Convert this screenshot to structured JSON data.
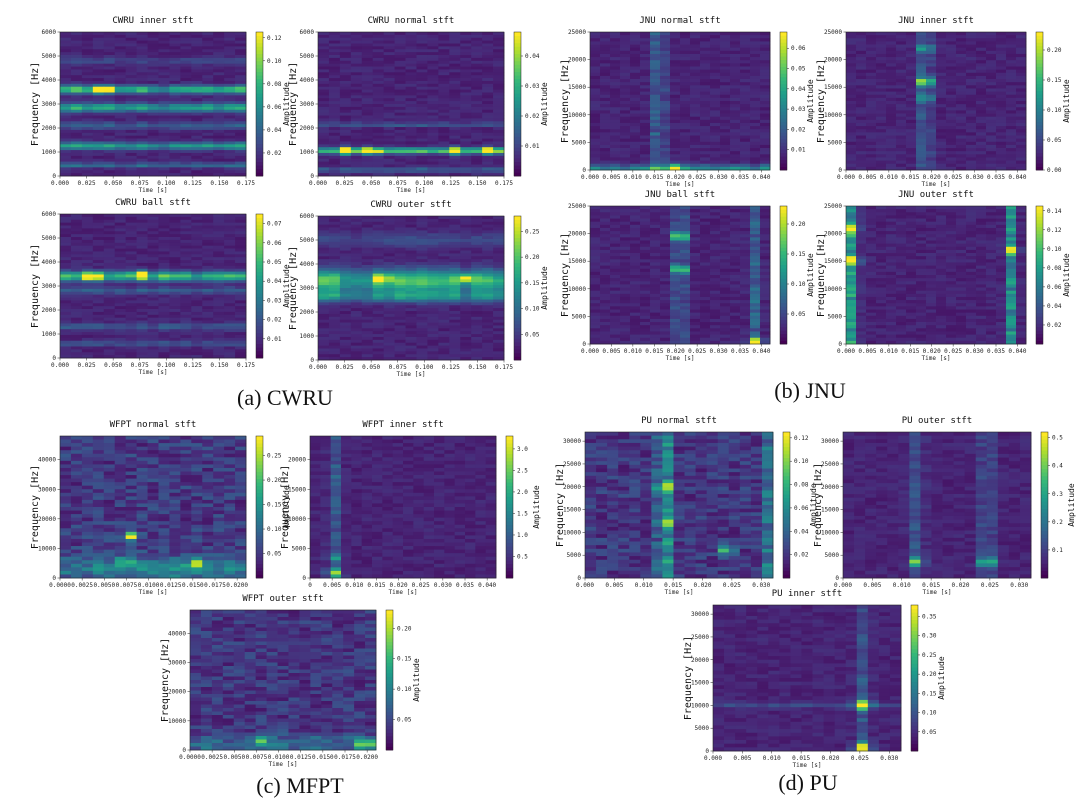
{
  "chart_data": [
    {
      "type": "heatmap",
      "id": "cwru-inner",
      "title": "CWRU inner stft",
      "xlabel": "Time [s]",
      "ylabel": "Frequency [Hz]",
      "colorbar_label": "Amplitude",
      "xticks": [
        "0.000",
        "0.025",
        "0.050",
        "0.075",
        "0.100",
        "0.125",
        "0.150",
        "0.175"
      ],
      "xlim": [
        0,
        0.175
      ],
      "yticks": [
        "0",
        "1000",
        "2000",
        "3000",
        "4000",
        "5000",
        "6000"
      ],
      "ylim": [
        0,
        6000
      ],
      "cbar_ticks": [
        "0.02",
        "0.04",
        "0.06",
        "0.08",
        "0.10",
        "0.12"
      ],
      "cbar_range": [
        0.0,
        0.125
      ],
      "ncols": 17,
      "nrows": 50,
      "bands": [
        {
          "y": 3600,
          "w": 160,
          "a": 0.55
        },
        {
          "y": 2850,
          "w": 180,
          "a": 0.45
        },
        {
          "y": 1250,
          "w": 150,
          "a": 0.42
        },
        {
          "y": 450,
          "w": 100,
          "a": 0.25
        },
        {
          "y": 2100,
          "w": 150,
          "a": 0.18
        },
        {
          "y": 4800,
          "w": 150,
          "a": 0.1
        }
      ],
      "hotspots": [
        {
          "t": 0.04,
          "y": 3600,
          "a": 0.9
        }
      ]
    },
    {
      "type": "heatmap",
      "id": "cwru-normal",
      "title": "CWRU normal stft",
      "xlabel": "Time [s]",
      "ylabel": "Frequency [Hz]",
      "colorbar_label": "Amplitude",
      "xticks": [
        "0.000",
        "0.025",
        "0.050",
        "0.075",
        "0.100",
        "0.125",
        "0.150",
        "0.175"
      ],
      "xlim": [
        0,
        0.175
      ],
      "yticks": [
        "0",
        "1000",
        "2000",
        "3000",
        "4000",
        "5000",
        "6000"
      ],
      "ylim": [
        0,
        6000
      ],
      "cbar_ticks": [
        "0.01",
        "0.02",
        "0.03",
        "0.04"
      ],
      "cbar_range": [
        0.0,
        0.048
      ],
      "ncols": 17,
      "nrows": 50,
      "bands": [
        {
          "y": 1050,
          "w": 120,
          "a": 0.55
        },
        {
          "y": 2150,
          "w": 60,
          "a": 0.28
        },
        {
          "y": 250,
          "w": 100,
          "a": 0.2
        }
      ],
      "hotspots": [
        {
          "t": 0.025,
          "y": 1050,
          "a": 0.85
        },
        {
          "t": 0.05,
          "y": 1050,
          "a": 0.8
        },
        {
          "t": 0.13,
          "y": 1050,
          "a": 0.85
        },
        {
          "t": 0.16,
          "y": 1050,
          "a": 0.8
        }
      ]
    },
    {
      "type": "heatmap",
      "id": "cwru-ball",
      "title": "CWRU ball stft",
      "xlabel": "Time [s]",
      "ylabel": "Frequency [Hz]",
      "colorbar_label": "Amplitude",
      "xticks": [
        "0.000",
        "0.025",
        "0.050",
        "0.075",
        "0.100",
        "0.125",
        "0.150",
        "0.175"
      ],
      "xlim": [
        0,
        0.175
      ],
      "yticks": [
        "0",
        "1000",
        "2000",
        "3000",
        "4000",
        "5000",
        "6000"
      ],
      "ylim": [
        0,
        6000
      ],
      "cbar_ticks": [
        "0.01",
        "0.02",
        "0.03",
        "0.04",
        "0.05",
        "0.06",
        "0.07"
      ],
      "cbar_range": [
        0.0,
        0.075
      ],
      "ncols": 17,
      "nrows": 50,
      "bands": [
        {
          "y": 3400,
          "w": 200,
          "a": 0.55
        },
        {
          "y": 2800,
          "w": 150,
          "a": 0.18
        },
        {
          "y": 1300,
          "w": 150,
          "a": 0.16
        },
        {
          "y": 600,
          "w": 120,
          "a": 0.14
        }
      ],
      "hotspots": [
        {
          "t": 0.03,
          "y": 3400,
          "a": 0.8
        },
        {
          "t": 0.075,
          "y": 3450,
          "a": 0.85
        }
      ]
    },
    {
      "type": "heatmap",
      "id": "cwru-outer",
      "title": "CWRU outer stft",
      "xlabel": "Time [s]",
      "ylabel": "Frequency [Hz]",
      "colorbar_label": "Amplitude",
      "xticks": [
        "0.000",
        "0.025",
        "0.050",
        "0.075",
        "0.100",
        "0.125",
        "0.150",
        "0.175"
      ],
      "xlim": [
        0,
        0.175
      ],
      "yticks": [
        "0",
        "1000",
        "2000",
        "3000",
        "4000",
        "5000",
        "6000"
      ],
      "ylim": [
        0,
        6000
      ],
      "cbar_ticks": [
        "0.05",
        "0.10",
        "0.15",
        "0.20",
        "0.25"
      ],
      "cbar_range": [
        0.0,
        0.28
      ],
      "ncols": 17,
      "nrows": 50,
      "bands": [
        {
          "y": 3300,
          "w": 450,
          "a": 0.55
        },
        {
          "y": 2650,
          "w": 250,
          "a": 0.35
        },
        {
          "y": 5000,
          "w": 300,
          "a": 0.12
        }
      ],
      "hotspots": [
        {
          "t": 0.06,
          "y": 3400,
          "a": 0.65
        },
        {
          "t": 0.14,
          "y": 3400,
          "a": 0.6
        }
      ]
    },
    {
      "type": "heatmap",
      "id": "jnu-normal",
      "title": "JNU normal stft",
      "xlabel": "Time [s]",
      "ylabel": "Frequency [Hz]",
      "colorbar_label": "Amplitude",
      "xticks": [
        "0.000",
        "0.005",
        "0.010",
        "0.015",
        "0.020",
        "0.025",
        "0.030",
        "0.035",
        "0.040"
      ],
      "xlim": [
        0,
        0.042
      ],
      "yticks": [
        "0",
        "5000",
        "10000",
        "15000",
        "20000",
        "25000"
      ],
      "ylim": [
        0,
        25000
      ],
      "cbar_ticks": [
        "0.01",
        "0.02",
        "0.03",
        "0.04",
        "0.05",
        "0.06"
      ],
      "cbar_range": [
        0.0,
        0.068
      ],
      "ncols": 18,
      "nrows": 44,
      "bands": [
        {
          "y": 400,
          "w": 500,
          "a": 0.35
        }
      ],
      "cols": [
        {
          "t": 0.016,
          "w": 0.0015,
          "a": 0.25
        }
      ],
      "hotspots": [
        {
          "t": 0.02,
          "y": 400,
          "a": 0.6
        }
      ]
    },
    {
      "type": "heatmap",
      "id": "jnu-inner",
      "title": "JNU inner stft",
      "xlabel": "Time [s]",
      "ylabel": "Frequency [Hz]",
      "colorbar_label": "Amplitude",
      "xticks": [
        "0.000",
        "0.005",
        "0.010",
        "0.015",
        "0.020",
        "0.025",
        "0.030",
        "0.035",
        "0.040"
      ],
      "xlim": [
        0,
        0.042
      ],
      "yticks": [
        "0",
        "5000",
        "10000",
        "15000",
        "20000",
        "25000"
      ],
      "ylim": [
        0,
        25000
      ],
      "cbar_ticks": [
        "0.00",
        "0.05",
        "0.10",
        "0.15",
        "0.20"
      ],
      "cbar_range": [
        0.0,
        0.23
      ],
      "ncols": 18,
      "nrows": 44,
      "bands": [],
      "cols": [
        {
          "t": 0.0185,
          "w": 0.0012,
          "a": 0.3
        }
      ],
      "hotspots": [
        {
          "t": 0.0185,
          "y": 16000,
          "a": 0.95
        },
        {
          "t": 0.0185,
          "y": 13000,
          "a": 0.45
        },
        {
          "t": 0.0185,
          "y": 22000,
          "a": 0.4
        }
      ]
    },
    {
      "type": "heatmap",
      "id": "jnu-ball",
      "title": "JNU ball stft",
      "xlabel": "Time [s]",
      "ylabel": "Frequency [Hz]",
      "colorbar_label": "Amplitude",
      "xticks": [
        "0.000",
        "0.005",
        "0.010",
        "0.015",
        "0.020",
        "0.025",
        "0.030",
        "0.035",
        "0.040"
      ],
      "xlim": [
        0,
        0.042
      ],
      "yticks": [
        "0",
        "5000",
        "10000",
        "15000",
        "20000",
        "25000"
      ],
      "ylim": [
        0,
        25000
      ],
      "cbar_ticks": [
        "0.05",
        "0.10",
        "0.15",
        "0.20"
      ],
      "cbar_range": [
        0.0,
        0.23
      ],
      "ncols": 18,
      "nrows": 44,
      "bands": [],
      "cols": [
        {
          "t": 0.021,
          "w": 0.0012,
          "a": 0.3
        },
        {
          "t": 0.0385,
          "w": 0.0012,
          "a": 0.2
        }
      ],
      "hotspots": [
        {
          "t": 0.021,
          "y": 19500,
          "a": 0.85
        },
        {
          "t": 0.021,
          "y": 13500,
          "a": 0.75
        },
        {
          "t": 0.0385,
          "y": 500,
          "a": 0.75
        }
      ]
    },
    {
      "type": "heatmap",
      "id": "jnu-outer",
      "title": "JNU outer stft",
      "xlabel": "Time [s]",
      "ylabel": "Frequency [Hz]",
      "colorbar_label": "Amplitude",
      "xticks": [
        "0.000",
        "0.005",
        "0.010",
        "0.015",
        "0.020",
        "0.025",
        "0.030",
        "0.035",
        "0.040"
      ],
      "xlim": [
        0,
        0.042
      ],
      "yticks": [
        "0",
        "5000",
        "10000",
        "15000",
        "20000",
        "25000"
      ],
      "ylim": [
        0,
        25000
      ],
      "cbar_ticks": [
        "0.02",
        "0.04",
        "0.06",
        "0.08",
        "0.10",
        "0.12",
        "0.14"
      ],
      "cbar_range": [
        0.0,
        0.145
      ],
      "ncols": 18,
      "nrows": 44,
      "bands": [],
      "cols": [
        {
          "t": 0.0015,
          "w": 0.0012,
          "a": 0.45
        },
        {
          "t": 0.0385,
          "w": 0.0012,
          "a": 0.35
        }
      ],
      "hotspots": [
        {
          "t": 0.0015,
          "y": 15000,
          "a": 0.75
        },
        {
          "t": 0.0015,
          "y": 21000,
          "a": 0.65
        },
        {
          "t": 0.0385,
          "y": 17000,
          "a": 0.5
        }
      ]
    },
    {
      "type": "heatmap",
      "id": "wfpt-normal",
      "title": "WFPT normal stft",
      "xlabel": "Time [s]",
      "ylabel": "Frequency [Hz]",
      "colorbar_label": "Amplitude",
      "xticks": [
        "0.0000",
        "0.0025",
        "0.0050",
        "0.0075",
        "0.0100",
        "0.0125",
        "0.0150",
        "0.0175",
        "0.0200"
      ],
      "xlim": [
        0,
        0.021
      ],
      "yticks": [
        "0",
        "10000",
        "20000",
        "30000",
        "40000"
      ],
      "ylim": [
        0,
        48000
      ],
      "cbar_ticks": [
        "0.05",
        "0.10",
        "0.15",
        "0.20",
        "0.25"
      ],
      "cbar_range": [
        0.0,
        0.29
      ],
      "ncols": 17,
      "nrows": 40,
      "noise": 0.22,
      "bands": [
        {
          "y": 3000,
          "w": 4000,
          "a": 0.25
        }
      ],
      "hotspots": [
        {
          "t": 0.0078,
          "y": 14000,
          "a": 0.8
        },
        {
          "t": 0.0155,
          "y": 5000,
          "a": 0.7
        },
        {
          "t": 0.0075,
          "y": 5500,
          "a": 0.55
        }
      ]
    },
    {
      "type": "heatmap",
      "id": "wfpt-inner",
      "title": "WFPT inner stft",
      "xlabel": "Time [s]",
      "ylabel": "Frequency [Hz]",
      "colorbar_label": "Amplitude",
      "xticks": [
        "0",
        "0.005",
        "0.010",
        "0.015",
        "0.020",
        "0.025",
        "0.030",
        "0.035",
        "0.040"
      ],
      "xlim": [
        0,
        0.042
      ],
      "yticks": [
        "0",
        "5000",
        "10000",
        "15000",
        "20000"
      ],
      "ylim": [
        0,
        24000
      ],
      "cbar_ticks": [
        "0.5",
        "1.0",
        "1.5",
        "2.0",
        "2.5",
        "3.0"
      ],
      "cbar_range": [
        0.0,
        3.3
      ],
      "ncols": 18,
      "nrows": 40,
      "bands": [],
      "cols": [
        {
          "t": 0.0055,
          "w": 0.0012,
          "a": 0.18
        }
      ],
      "hotspots": [
        {
          "t": 0.0055,
          "y": 800,
          "a": 0.65
        },
        {
          "t": 0.0055,
          "y": 3500,
          "a": 0.3
        }
      ]
    },
    {
      "type": "heatmap",
      "id": "wfpt-outer",
      "title": "WFPT outer stft",
      "xlabel": "Time [s]",
      "ylabel": "Frequency [Hz]",
      "colorbar_label": "Amplitude",
      "xticks": [
        "0.0000",
        "0.0025",
        "0.0050",
        "0.0075",
        "0.0100",
        "0.0125",
        "0.0150",
        "0.0175",
        "0.0200"
      ],
      "xlim": [
        0,
        0.021
      ],
      "yticks": [
        "0",
        "10000",
        "20000",
        "30000",
        "40000"
      ],
      "ylim": [
        0,
        48000
      ],
      "cbar_ticks": [
        "0.05",
        "0.10",
        "0.15",
        "0.20"
      ],
      "cbar_range": [
        0.0,
        0.23
      ],
      "ncols": 17,
      "nrows": 40,
      "noise": 0.2,
      "bands": [
        {
          "y": 2000,
          "w": 3000,
          "a": 0.2
        }
      ],
      "hotspots": [
        {
          "t": 0.0198,
          "y": 2000,
          "a": 0.85
        },
        {
          "t": 0.008,
          "y": 3000,
          "a": 0.45
        }
      ]
    },
    {
      "type": "heatmap",
      "id": "pu-normal",
      "title": "PU normal stft",
      "xlabel": "Time [s]",
      "ylabel": "Frequency [Hz]",
      "colorbar_label": "Amplitude",
      "xticks": [
        "0.000",
        "0.005",
        "0.010",
        "0.015",
        "0.020",
        "0.025",
        "0.030"
      ],
      "xlim": [
        0,
        0.032
      ],
      "yticks": [
        "0",
        "5000",
        "10000",
        "15000",
        "20000",
        "25000",
        "30000"
      ],
      "ylim": [
        0,
        32000
      ],
      "cbar_ticks": [
        "0.02",
        "0.04",
        "0.06",
        "0.08",
        "0.10",
        "0.12"
      ],
      "cbar_range": [
        0.0,
        0.125
      ],
      "ncols": 17,
      "nrows": 40,
      "noise": 0.2,
      "bands": [],
      "cols": [
        {
          "t": 0.0135,
          "w": 0.0012,
          "a": 0.4
        },
        {
          "t": 0.031,
          "w": 0.001,
          "a": 0.2
        }
      ],
      "hotspots": [
        {
          "t": 0.0135,
          "y": 20000,
          "a": 0.6
        },
        {
          "t": 0.0135,
          "y": 12000,
          "a": 0.55
        },
        {
          "t": 0.024,
          "y": 6000,
          "a": 0.5
        }
      ]
    },
    {
      "type": "heatmap",
      "id": "pu-outer",
      "title": "PU outer stft",
      "xlabel": "Time [s]",
      "ylabel": "Frequency [Hz]",
      "colorbar_label": "Amplitude",
      "xticks": [
        "0.000",
        "0.005",
        "0.010",
        "0.015",
        "0.020",
        "0.025",
        "0.030"
      ],
      "xlim": [
        0,
        0.032
      ],
      "yticks": [
        "0",
        "5000",
        "10000",
        "15000",
        "20000",
        "25000",
        "30000"
      ],
      "ylim": [
        0,
        32000
      ],
      "cbar_ticks": [
        "0.1",
        "0.2",
        "0.3",
        "0.4",
        "0.5"
      ],
      "cbar_range": [
        0.0,
        0.52
      ],
      "ncols": 17,
      "nrows": 40,
      "bands": [],
      "cols": [
        {
          "t": 0.0125,
          "w": 0.0012,
          "a": 0.15
        },
        {
          "t": 0.0245,
          "w": 0.0012,
          "a": 0.18
        }
      ],
      "hotspots": [
        {
          "t": 0.0125,
          "y": 3500,
          "a": 0.6
        },
        {
          "t": 0.0245,
          "y": 3500,
          "a": 0.7
        }
      ]
    },
    {
      "type": "heatmap",
      "id": "pu-inner",
      "title": "PU inner stft",
      "xlabel": "Time [s]",
      "ylabel": "Frequency [Hz]",
      "colorbar_label": "Amplitude",
      "xticks": [
        "0.000",
        "0.005",
        "0.010",
        "0.015",
        "0.020",
        "0.025",
        "0.030"
      ],
      "xlim": [
        0,
        0.032
      ],
      "yticks": [
        "0",
        "5000",
        "10000",
        "15000",
        "20000",
        "25000",
        "30000"
      ],
      "ylim": [
        0,
        32000
      ],
      "cbar_ticks": [
        "0.05",
        "0.10",
        "0.15",
        "0.20",
        "0.25",
        "0.30",
        "0.35"
      ],
      "cbar_range": [
        0.0,
        0.38
      ],
      "ncols": 17,
      "nrows": 40,
      "bands": [
        {
          "y": 10000,
          "w": 600,
          "a": 0.12
        }
      ],
      "cols": [
        {
          "t": 0.0255,
          "w": 0.0012,
          "a": 0.15
        }
      ],
      "hotspots": [
        {
          "t": 0.0255,
          "y": 10000,
          "a": 0.9
        },
        {
          "t": 0.0255,
          "y": 700,
          "a": 0.85
        }
      ]
    }
  ],
  "captions": {
    "cwru": "(a) CWRU",
    "jnu": "(b) JNU",
    "mfpt": "(c) MFPT",
    "pu": "(d) PU"
  },
  "colors": {
    "low": "#440154",
    "high": "#fde725"
  }
}
